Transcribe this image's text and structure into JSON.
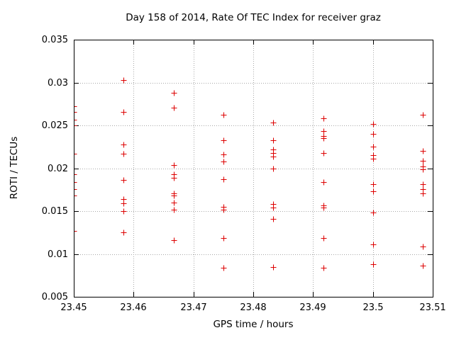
{
  "chart_data": {
    "type": "scatter",
    "title": "Day 158 of 2014, Rate Of TEC Index for receiver graz",
    "xlabel": "GPS time / hours",
    "ylabel": "ROTI / TECUs",
    "xlim": [
      23.45,
      23.51
    ],
    "ylim": [
      0.005,
      0.035
    ],
    "xticks": [
      23.45,
      23.46,
      23.47,
      23.48,
      23.49,
      23.5,
      23.51
    ],
    "xtick_labels": [
      "23.45",
      "23.46",
      "23.47",
      "23.48",
      "23.49",
      "23.5",
      "23.51"
    ],
    "yticks": [
      0.005,
      0.01,
      0.015,
      0.02,
      0.025,
      0.03,
      0.035
    ],
    "ytick_labels": [
      "0.005",
      "0.01",
      "0.015",
      "0.02",
      "0.025",
      "0.03",
      "0.035"
    ],
    "grid": true,
    "legend": "none",
    "marker": {
      "shape": "plus",
      "color": "#dd0000",
      "size": 9
    },
    "series": [
      {
        "name": "ROTI",
        "groups": [
          {
            "x": 23.45,
            "values": [
              0.0272,
              0.0266,
              0.0257,
              0.025,
              0.0217,
              0.0193,
              0.0184,
              0.0176,
              0.0168,
              0.0127
            ]
          },
          {
            "x": 23.4583,
            "values": [
              0.0303,
              0.0266,
              0.0228,
              0.0217,
              0.0186,
              0.0164,
              0.0159,
              0.015,
              0.0125
            ]
          },
          {
            "x": 23.4667,
            "values": [
              0.0288,
              0.0271,
              0.0204,
              0.0193,
              0.0189,
              0.0171,
              0.0168,
              0.016,
              0.0152,
              0.0116
            ]
          },
          {
            "x": 23.475,
            "values": [
              0.0262,
              0.0233,
              0.0216,
              0.0208,
              0.0187,
              0.0155,
              0.0152,
              0.0119,
              0.0084
            ]
          },
          {
            "x": 23.4833,
            "values": [
              0.0253,
              0.0233,
              0.0222,
              0.0218,
              0.0214,
              0.02,
              0.0158,
              0.0154,
              0.0141,
              0.0085
            ]
          },
          {
            "x": 23.4917,
            "values": [
              0.0258,
              0.0243,
              0.0238,
              0.0235,
              0.0218,
              0.0184,
              0.0157,
              0.0154,
              0.0119,
              0.0084
            ]
          },
          {
            "x": 23.5,
            "values": [
              0.0252,
              0.024,
              0.0225,
              0.0215,
              0.0211,
              0.0181,
              0.0173,
              0.0148,
              0.0111,
              0.0088
            ]
          },
          {
            "x": 23.5083,
            "values": [
              0.0262,
              0.022,
              0.0209,
              0.0202,
              0.0199,
              0.0181,
              0.0176,
              0.0171,
              0.0109,
              0.0086
            ]
          }
        ]
      }
    ]
  }
}
